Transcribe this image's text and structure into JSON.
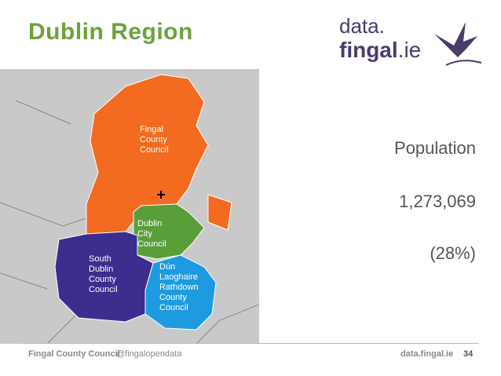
{
  "header": {
    "title": "Dublin Region",
    "logo": {
      "line1": "data.",
      "line2": "fingal",
      "line2_suffix": ".ie"
    }
  },
  "map": {
    "regions": [
      {
        "label_lines": [
          "Fingal",
          "County",
          "Council"
        ]
      },
      {
        "label_lines": [
          "Dublin",
          "City",
          "Council"
        ]
      },
      {
        "label_lines": [
          "South",
          "Dublin",
          "County",
          "Council"
        ]
      },
      {
        "label_lines": [
          "Dún",
          "Laoghaire",
          "Rathdown",
          "County",
          "Council"
        ]
      }
    ]
  },
  "stats": {
    "label": "Population",
    "value": "1,273,069",
    "share": "(28%)"
  },
  "footer": {
    "org": "Fingal County Council",
    "handle": "@fingalopendata",
    "site": "data.fingal.ie",
    "page": "34"
  }
}
